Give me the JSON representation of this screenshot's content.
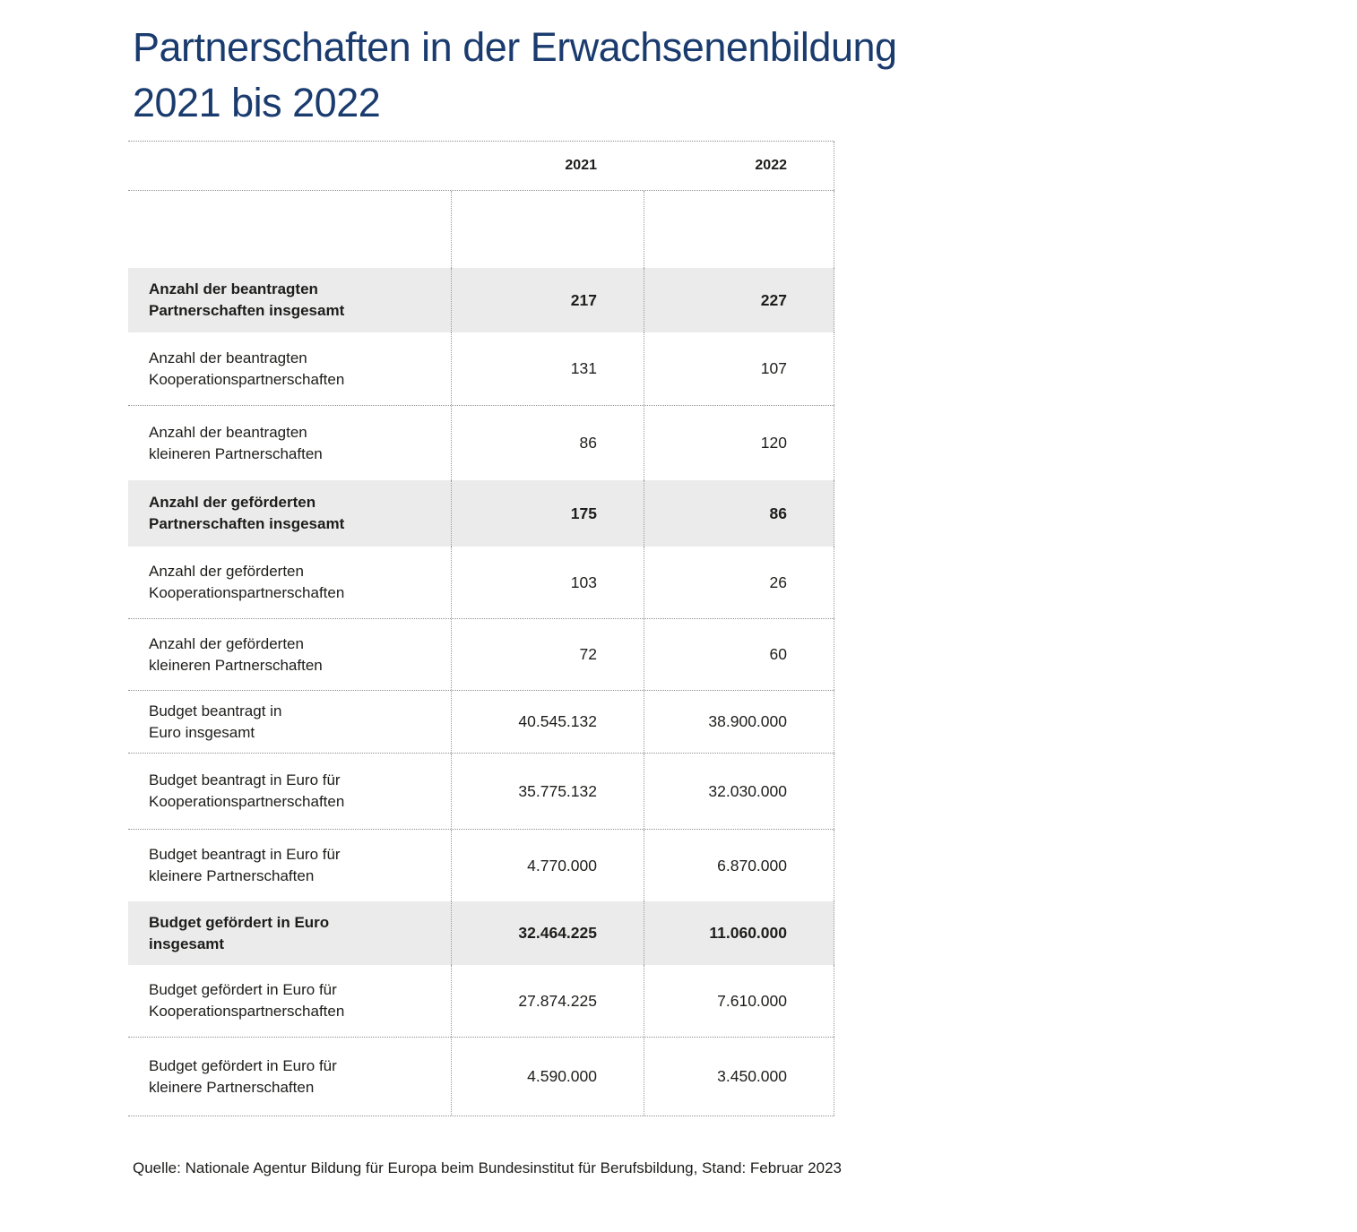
{
  "accent_color": "#1a3b6e",
  "row_highlight_color": "#ebebeb",
  "title": {
    "line1": "Partnerschaften in der Erwachsenenbildung",
    "line2": "2021 bis 2022"
  },
  "table": {
    "columns": [
      "2021",
      "2022"
    ],
    "rows": [
      {
        "label": [
          "Anzahl der beantragten",
          "Partnerschaften insgesamt"
        ],
        "values": [
          "217",
          "227"
        ],
        "emphasis": true
      },
      {
        "label": [
          "Anzahl der beantragten",
          "Kooperationspartnerschaften"
        ],
        "values": [
          "131",
          "107"
        ],
        "emphasis": false
      },
      {
        "label": [
          "Anzahl der beantragten",
          "kleineren Partnerschaften"
        ],
        "values": [
          "86",
          "120"
        ],
        "emphasis": false
      },
      {
        "label": [
          "Anzahl der geförderten",
          "Partnerschaften insgesamt"
        ],
        "values": [
          "175",
          "86"
        ],
        "emphasis": true
      },
      {
        "label": [
          "Anzahl der geförderten",
          "Kooperationspartnerschaften"
        ],
        "values": [
          "103",
          "26"
        ],
        "emphasis": false
      },
      {
        "label": [
          "Anzahl der geförderten",
          "kleineren Partnerschaften"
        ],
        "values": [
          "72",
          "60"
        ],
        "emphasis": false
      },
      {
        "label": [
          "Budget beantragt in",
          "Euro insgesamt"
        ],
        "values": [
          "40.545.132",
          "38.900.000"
        ],
        "emphasis": false
      },
      {
        "label": [
          "Budget beantragt in Euro für",
          "Kooperationspartnerschaften"
        ],
        "values": [
          "35.775.132",
          "32.030.000"
        ],
        "emphasis": false
      },
      {
        "label": [
          "Budget beantragt in Euro für",
          "kleinere Partnerschaften"
        ],
        "values": [
          "4.770.000",
          "6.870.000"
        ],
        "emphasis": false
      },
      {
        "label": [
          "Budget gefördert in Euro",
          "insgesamt"
        ],
        "values": [
          "32.464.225",
          "11.060.000"
        ],
        "emphasis": true
      },
      {
        "label": [
          "Budget gefördert in Euro für",
          "Kooperationspartnerschaften"
        ],
        "values": [
          "27.874.225",
          "7.610.000"
        ],
        "emphasis": false
      },
      {
        "label": [
          "Budget gefördert in Euro für",
          "kleinere Partnerschaften"
        ],
        "values": [
          "4.590.000",
          "3.450.000"
        ],
        "emphasis": false
      }
    ]
  },
  "source": "Quelle: Nationale Agentur Bildung für Europa beim Bundesinstitut für Berufsbildung, Stand: Februar 2023",
  "chart_data": {
    "type": "table",
    "title": "Partnerschaften in der Erwachsenenbildung 2021 bis 2022",
    "categories": [
      "2021",
      "2022"
    ],
    "series": [
      {
        "name": "Anzahl der beantragten Partnerschaften insgesamt",
        "values": [
          217,
          227
        ]
      },
      {
        "name": "Anzahl der beantragten Kooperationspartnerschaften",
        "values": [
          131,
          107
        ]
      },
      {
        "name": "Anzahl der beantragten kleineren Partnerschaften",
        "values": [
          86,
          120
        ]
      },
      {
        "name": "Anzahl der geförderten Partnerschaften insgesamt",
        "values": [
          175,
          86
        ]
      },
      {
        "name": "Anzahl der geförderten Kooperationspartnerschaften",
        "values": [
          103,
          26
        ]
      },
      {
        "name": "Anzahl der geförderten kleineren Partnerschaften",
        "values": [
          72,
          60
        ]
      },
      {
        "name": "Budget beantragt in Euro insgesamt",
        "values": [
          40545132,
          38900000
        ]
      },
      {
        "name": "Budget beantragt in Euro für Kooperationspartnerschaften",
        "values": [
          35775132,
          32030000
        ]
      },
      {
        "name": "Budget beantragt in Euro für kleinere Partnerschaften",
        "values": [
          4770000,
          6870000
        ]
      },
      {
        "name": "Budget gefördert in Euro insgesamt",
        "values": [
          32464225,
          11060000
        ]
      },
      {
        "name": "Budget gefördert in Euro für Kooperationspartnerschaften",
        "values": [
          27874225,
          7610000
        ]
      },
      {
        "name": "Budget gefördert in Euro für kleinere Partnerschaften",
        "values": [
          4590000,
          3450000
        ]
      }
    ],
    "source": "Quelle: Nationale Agentur Bildung für Europa beim Bundesinstitut für Berufsbildung, Stand: Februar 2023"
  }
}
